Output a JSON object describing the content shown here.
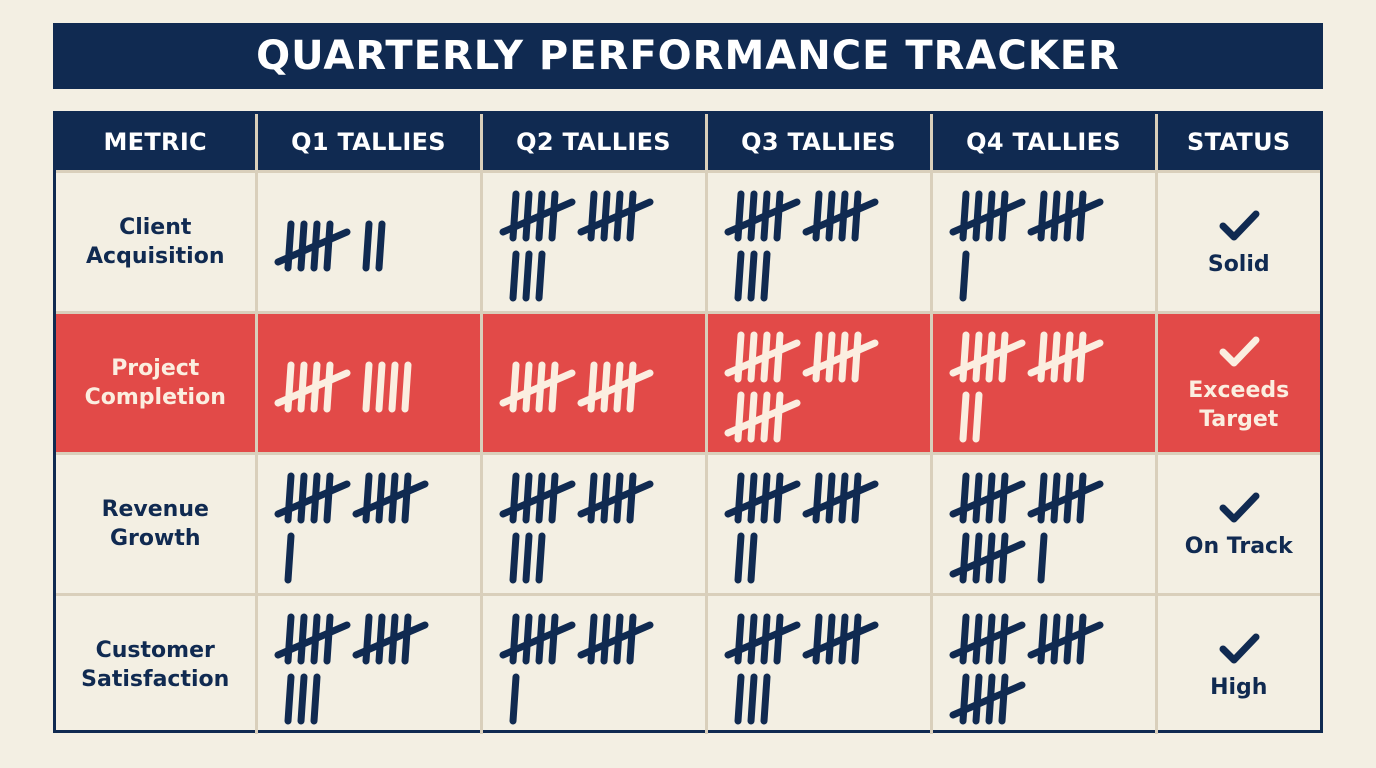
{
  "title": "QUARTERLY PERFORMANCE TRACKER",
  "colors": {
    "navy": "#102a51",
    "highlight": "#e24a48",
    "background": "#f3efe3",
    "grid": "#d9cfbb",
    "light_text": "#fbeee0"
  },
  "chart_data": {
    "type": "table",
    "columns": [
      "METRIC",
      "Q1 TALLIES",
      "Q2 TALLIES",
      "Q3 TALLIES",
      "Q4 TALLIES",
      "STATUS"
    ],
    "rows": [
      {
        "metric": "Client\nAcquisition",
        "tallies": [
          7,
          13,
          13,
          11
        ],
        "status": "Solid",
        "highlight": false
      },
      {
        "metric": "Project\nCompletion",
        "tallies": [
          9,
          10,
          15,
          12
        ],
        "status": "Exceeds\nTarget",
        "highlight": true
      },
      {
        "metric": "Revenue\nGrowth",
        "tallies": [
          11,
          13,
          12,
          16
        ],
        "status": "On Track",
        "highlight": false
      },
      {
        "metric": "Customer\nSatisfaction",
        "tallies": [
          13,
          11,
          13,
          15
        ],
        "status": "High",
        "highlight": false
      }
    ],
    "status_icon": "check-icon"
  }
}
